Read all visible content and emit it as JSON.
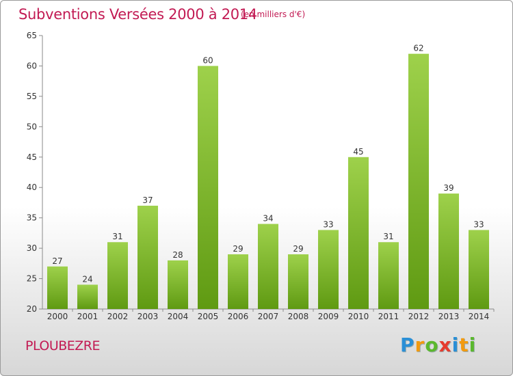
{
  "header": {
    "title": "Subventions Versées 2000 à 2014",
    "subtitle": "(en milliers d'€)"
  },
  "footer": {
    "commune": "PLOUBEZRE",
    "logo_text": "Proxiti"
  },
  "colors": {
    "title": "#c21a53",
    "bar_top": "#9ed14b",
    "bar_bottom": "#5f9a12",
    "axis": "#8a8a8a"
  },
  "chart_data": {
    "type": "bar",
    "title": "Subventions Versées 2000 à 2014",
    "subtitle": "(en milliers d'€)",
    "xlabel": "",
    "ylabel": "",
    "categories": [
      "2000",
      "2001",
      "2002",
      "2003",
      "2004",
      "2005",
      "2006",
      "2007",
      "2008",
      "2009",
      "2010",
      "2011",
      "2012",
      "2013",
      "2014"
    ],
    "values": [
      27,
      24,
      31,
      37,
      28,
      60,
      29,
      34,
      29,
      33,
      45,
      31,
      62,
      39,
      33
    ],
    "ylim": [
      20,
      65
    ],
    "yticks": [
      20,
      25,
      30,
      35,
      40,
      45,
      50,
      55,
      60,
      65
    ],
    "grid": false,
    "data_labels": true
  }
}
